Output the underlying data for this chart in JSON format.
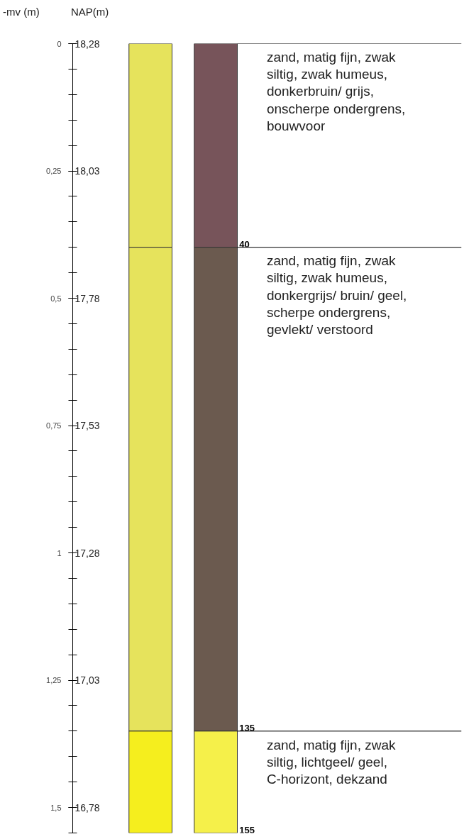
{
  "chart_data": {
    "type": "bar",
    "stacked": true,
    "categories": [
      null,
      null
    ],
    "ylabel": "-mv (m)",
    "y2label": "NAP(m)",
    "ylim": [
      1.55,
      0
    ],
    "yticks": [
      {
        "value": 0,
        "label": "0"
      },
      {
        "value": 0.25,
        "label": "0,25"
      },
      {
        "value": 0.5,
        "label": "0,5"
      },
      {
        "value": 0.75,
        "label": "0,75"
      },
      {
        "value": 1,
        "label": "1"
      },
      {
        "value": 1.25,
        "label": "1,25"
      },
      {
        "value": 1.5,
        "label": "1,5"
      }
    ],
    "y2lim": [
      16.73,
      18.28
    ],
    "y2ticks": [
      {
        "value": 18.28,
        "label": "18,28"
      },
      {
        "value": 18.03,
        "label": "18,03"
      },
      {
        "value": 17.78,
        "label": "17,78"
      },
      {
        "value": 17.53,
        "label": "17,53"
      },
      {
        "value": 17.28,
        "label": "17,28"
      },
      {
        "value": 17.03,
        "label": "17,03"
      },
      {
        "value": 16.78,
        "label": "16,78"
      }
    ],
    "series": [
      {
        "name": "zand, matig fijn, zwak\nsiltig, zwak humeus,\ndonkerbruin/ grijs,\nonscherpe ondergrens,\nbouwvoor",
        "colors": [
          "#e6e35c",
          "#77545a"
        ],
        "values": [
          0.4,
          0.4
        ]
      },
      {
        "name": "zand, matig fijn, zwak\nsiltig, zwak humeus,\ndonkergrijs/ bruin/ geel,\nscherpe ondergrens,\ngevlekt/ verstoord",
        "colors": [
          "#e6e35c",
          "#6b5a4f"
        ],
        "values": [
          0.95,
          0.95
        ]
      },
      {
        "name": "zand, matig fijn, zwak\nsiltig, lichtgeel/ geel,\nC-horizont, dekzand",
        "colors": [
          "#f5ee1e",
          "#f5f04a"
        ],
        "values": [
          0.2,
          0.2
        ]
      }
    ],
    "annotations": [
      "40",
      "135",
      "155"
    ]
  }
}
